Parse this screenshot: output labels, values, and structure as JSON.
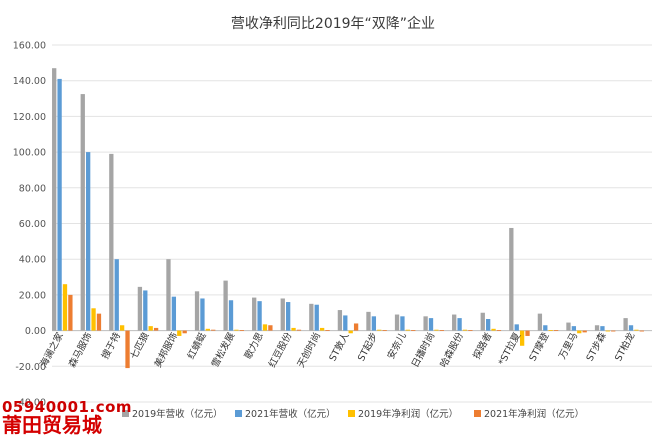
{
  "chart_data": {
    "type": "bar",
    "title": "营收净利同比2019年“双降”企业",
    "ylim": [
      -40,
      160
    ],
    "yticks": [
      "160.00",
      "140.00",
      "120.00",
      "100.00",
      "80.00",
      "60.00",
      "40.00",
      "20.00",
      "0.00",
      "-20.00",
      "-40.00"
    ],
    "ytick_values": [
      160,
      140,
      120,
      100,
      80,
      60,
      40,
      20,
      0,
      -20,
      -40
    ],
    "grid": true,
    "legend_position": "bottom",
    "categories": [
      "海澜之家",
      "森马服饰",
      "搜于特",
      "七匹狼",
      "美邦服饰",
      "红蜻蜓",
      "雪松发展",
      "歌力思",
      "红豆股份",
      "天创时尚",
      "ST敦人",
      "ST起步",
      "安奈儿",
      "日播时尚",
      "哈森股份",
      "探路者",
      "*ST拉夏",
      "ST摩登",
      "万里马",
      "ST步森",
      "ST柏龙"
    ],
    "series": [
      {
        "name": "2019年营收（亿元）",
        "color": "#a5a5a5",
        "values": [
          147,
          132.5,
          99,
          24.5,
          40,
          22,
          28,
          18.5,
          18,
          15,
          11.5,
          10.5,
          9,
          8,
          9,
          10,
          57.5,
          9.5,
          4.5,
          3,
          7
        ]
      },
      {
        "name": "2021年营收（亿元）",
        "color": "#5b9bd5",
        "values": [
          141,
          100,
          40,
          22.5,
          19,
          18,
          17,
          16.5,
          16,
          14.5,
          8.5,
          8,
          8,
          7,
          7,
          6.5,
          3.5,
          3,
          2.5,
          2.5,
          3
        ]
      },
      {
        "name": "2019年净利润（亿元）",
        "color": "#ffc000",
        "values": [
          26,
          12.5,
          3,
          2.5,
          -3,
          1,
          0.5,
          3.5,
          1.5,
          1.5,
          -1.5,
          0.5,
          0.5,
          0.5,
          0.5,
          1,
          -8.5,
          0.3,
          -1.5,
          -0.5,
          0.5
        ]
      },
      {
        "name": "2021年净利润（亿元）",
        "color": "#ed7d31",
        "values": [
          20,
          9.5,
          -21,
          1.5,
          -1.5,
          0.5,
          0.3,
          3,
          0.5,
          0.3,
          4,
          0.3,
          0.3,
          0.3,
          0.3,
          0.3,
          -3,
          0.3,
          -1,
          -0.5,
          -0.5
        ]
      }
    ]
  },
  "watermark": {
    "line1": "05940001.com",
    "line2": "莆田贸易城"
  }
}
